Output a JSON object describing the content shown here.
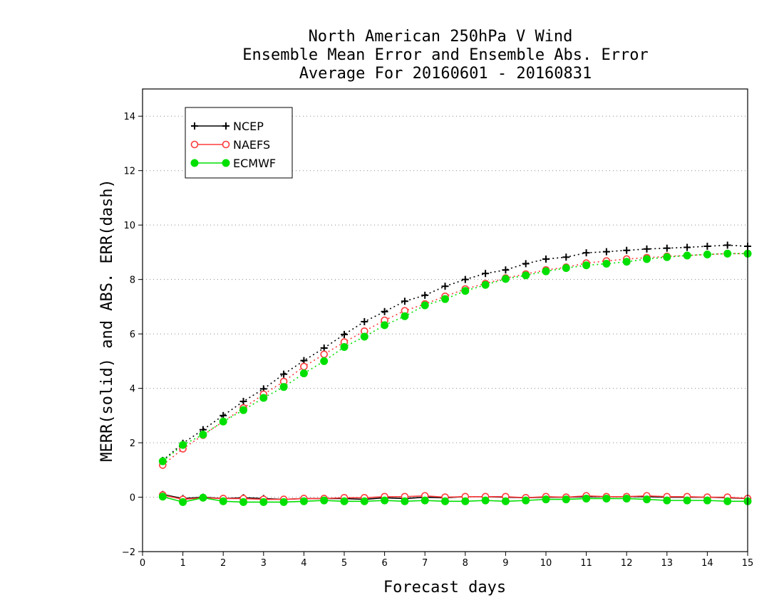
{
  "chart_data": {
    "type": "line",
    "title": [
      "North American 250hPa V Wind",
      "Ensemble Mean Error and Ensemble Abs. Error",
      "Average For 20160601 - 20160831"
    ],
    "xlabel": "Forecast days",
    "ylabel": "MERR(solid) and ABS. ERR(dash)",
    "xlim": [
      0,
      15
    ],
    "ylim": [
      -2,
      15
    ],
    "xticks": [
      0,
      1,
      2,
      3,
      4,
      5,
      6,
      7,
      8,
      9,
      10,
      11,
      12,
      13,
      14,
      15
    ],
    "yticks": [
      -2,
      0,
      2,
      4,
      6,
      8,
      10,
      12,
      14
    ],
    "grid": "horizontal dotted",
    "legend_position": "top-left",
    "x": [
      0.5,
      1.0,
      1.5,
      2.0,
      2.5,
      3.0,
      3.5,
      4.0,
      4.5,
      5.0,
      5.5,
      6.0,
      6.5,
      7.0,
      7.5,
      8.0,
      8.5,
      9.0,
      9.5,
      10.0,
      10.5,
      11.0,
      11.5,
      12.0,
      12.5,
      13.0,
      13.5,
      14.0,
      14.5,
      15.0
    ],
    "series": [
      {
        "name": "NCEP",
        "color": "#000000",
        "marker": "plus",
        "abs_err": [
          1.35,
          1.98,
          2.48,
          3.0,
          3.52,
          3.98,
          4.52,
          5.02,
          5.48,
          5.98,
          6.45,
          6.82,
          7.2,
          7.42,
          7.75,
          8.0,
          8.22,
          8.35,
          8.58,
          8.75,
          8.82,
          8.98,
          9.02,
          9.07,
          9.12,
          9.15,
          9.18,
          9.22,
          9.26,
          9.22
        ],
        "mean_err": [
          0.1,
          -0.05,
          0.0,
          -0.05,
          -0.02,
          -0.05,
          -0.08,
          -0.05,
          -0.05,
          -0.05,
          -0.08,
          -0.02,
          -0.05,
          0.0,
          -0.02,
          0.02,
          0.02,
          0.0,
          -0.02,
          0.0,
          0.0,
          0.02,
          0.02,
          0.02,
          0.02,
          0.0,
          0.0,
          0.0,
          -0.02,
          -0.05
        ]
      },
      {
        "name": "NAEFS",
        "color": "#ff3b3b",
        "marker": "open-circle",
        "abs_err": [
          1.18,
          1.78,
          2.28,
          2.78,
          3.28,
          3.78,
          4.25,
          4.8,
          5.25,
          5.7,
          6.1,
          6.5,
          6.85,
          7.1,
          7.38,
          7.65,
          7.85,
          8.05,
          8.2,
          8.35,
          8.45,
          8.6,
          8.68,
          8.75,
          8.8,
          8.85,
          8.88,
          8.92,
          8.95,
          8.95
        ],
        "mean_err": [
          0.08,
          -0.08,
          -0.02,
          -0.05,
          -0.05,
          -0.08,
          -0.08,
          -0.05,
          -0.05,
          -0.02,
          -0.02,
          0.02,
          0.02,
          0.05,
          0.0,
          0.02,
          0.02,
          0.02,
          -0.02,
          0.02,
          0.0,
          0.05,
          0.02,
          0.02,
          0.05,
          0.02,
          0.02,
          0.0,
          0.0,
          -0.05
        ]
      },
      {
        "name": "ECMWF",
        "color": "#00e000",
        "marker": "filled-circle",
        "abs_err": [
          1.32,
          1.92,
          2.3,
          2.78,
          3.2,
          3.65,
          4.05,
          4.55,
          5.0,
          5.52,
          5.9,
          6.32,
          6.65,
          7.05,
          7.28,
          7.58,
          7.8,
          8.02,
          8.15,
          8.3,
          8.42,
          8.52,
          8.58,
          8.65,
          8.75,
          8.82,
          8.88,
          8.92,
          8.95,
          8.95
        ],
        "mean_err": [
          0.02,
          -0.18,
          -0.02,
          -0.15,
          -0.18,
          -0.18,
          -0.18,
          -0.15,
          -0.12,
          -0.15,
          -0.15,
          -0.12,
          -0.15,
          -0.12,
          -0.15,
          -0.15,
          -0.12,
          -0.15,
          -0.12,
          -0.08,
          -0.08,
          -0.05,
          -0.05,
          -0.05,
          -0.08,
          -0.12,
          -0.12,
          -0.12,
          -0.15,
          -0.15
        ]
      }
    ]
  }
}
